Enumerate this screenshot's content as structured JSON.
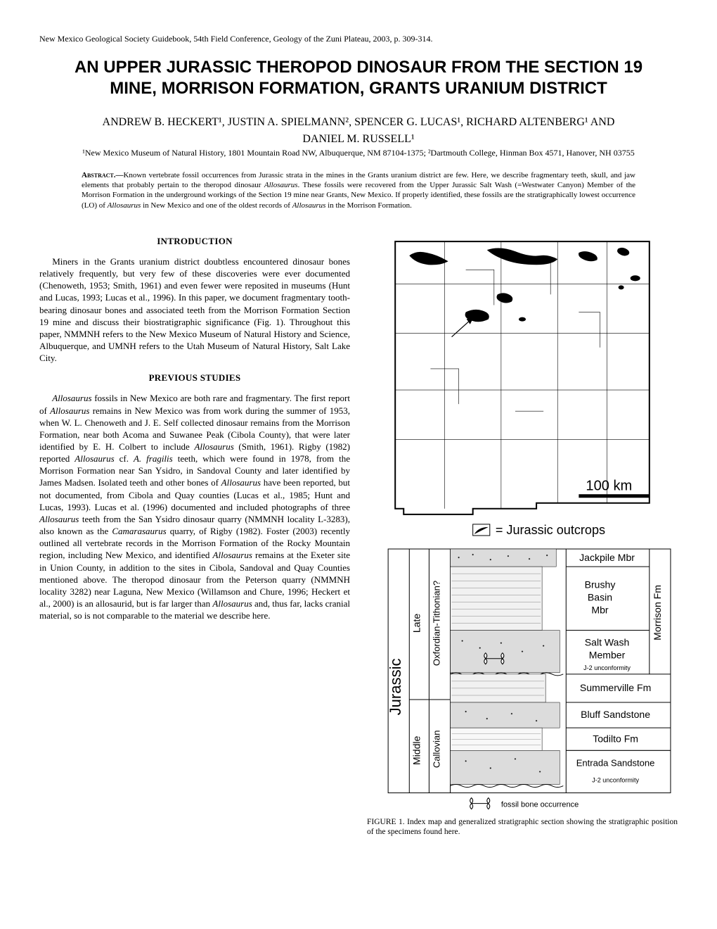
{
  "header_note": "New Mexico Geological Society Guidebook, 54th Field Conference, Geology of the Zuni Plateau, 2003, p. 309-314.",
  "title": "AN UPPER JURASSIC THEROPOD DINOSAUR FROM THE SECTION 19 MINE, MORRISON FORMATION, GRANTS URANIUM DISTRICT",
  "authors_line1": "ANDREW B. HECKERT¹, JUSTIN A. SPIELMANN², SPENCER G. LUCAS¹, RICHARD ALTENBERG¹ AND",
  "authors_line2": "DANIEL M. RUSSELL¹",
  "affiliations": "¹New Mexico Museum of Natural History, 1801 Mountain Road NW, Albuquerque, NM 87104-1375; ²Dartmouth College, Hinman Box 4571, Hanover, NH 03755",
  "abstract_label": "Abstract.—",
  "abstract_text": "Known vertebrate fossil occurrences from Jurassic strata in the mines in the Grants uranium district are few. Here, we describe fragmentary teeth, skull, and jaw elements that probably pertain to the theropod dinosaur Allosaurus. These fossils were recovered from the Upper Jurassic Salt Wash (=Westwater Canyon) Member of the Morrison Formation in the underground workings of the Section 19 mine near Grants, New Mexico. If properly identified, these fossils are the stratigraphically lowest occurrence (LO) of Allosaurus in New Mexico and one of the oldest records of Allosaurus in the Morrison Formation.",
  "sections": {
    "intro_heading": "INTRODUCTION",
    "intro_text": "Miners in the Grants uranium district doubtless encountered dinosaur bones relatively frequently, but very few of these discoveries were ever documented (Chenoweth, 1953; Smith, 1961) and even fewer were reposited in museums (Hunt and Lucas, 1993; Lucas et al., 1996). In this paper, we document fragmentary tooth-bearing dinosaur bones and associated teeth from the Morrison Formation Section 19 mine and discuss their biostratigraphic significance (Fig. 1). Throughout this paper, NMMNH refers to the New Mexico Museum of Natural History and Science, Albuquerque, and UMNH refers to the Utah Museum of Natural History, Salt Lake City.",
    "prev_heading": "PREVIOUS STUDIES",
    "prev_text": "Allosaurus fossils in New Mexico are both rare and fragmentary. The first report of Allosaurus remains in New Mexico was from work during the summer of 1953, when W. L. Chenoweth and J. E. Self collected dinosaur remains from the Morrison Formation, near both Acoma and Suwanee Peak (Cibola County), that were later identified by E. H. Colbert to include Allosaurus (Smith, 1961). Rigby (1982) reported Allosaurus cf. A. fragilis teeth, which were found in 1978, from the Morrison Formation near San Ysidro, in Sandoval County and later identified by James Madsen. Isolated teeth and other bones of Allosaurus have been reported, but not documented, from Cibola and Quay counties (Lucas et al., 1985; Hunt and Lucas, 1993). Lucas et al. (1996) documented and included photographs of  three Allosaurus teeth from the San Ysidro dinosaur quarry (NMMNH locality L-3283), also known as the Camarasaurus quarry, of Rigby (1982). Foster (2003) recently outlined all vertebrate records in the Morrison Formation of the Rocky Mountain region, including New Mexico, and identified Allosaurus remains at the Exeter site in Union County, in addition to the sites in Cibola, Sandoval and Quay Counties mentioned above. The theropod dinosaur from the Peterson quarry (NMMNH locality 3282) near Laguna, New Mexico (Willamson and Chure, 1996; Heckert et al., 2000) is an allosaurid, but is far larger than Allosaurus and, thus far, lacks cranial material, so is not comparable to the material we describe here."
  },
  "figure": {
    "caption": "FIGURE 1. Index map and generalized stratigraphic section showing the stratigraphic position of the specimens found here.",
    "map": {
      "scalebar_label": "100 km",
      "legend_label": "= Jurassic outcrops",
      "background": "#ffffff",
      "outcrop_fill": "#000000"
    },
    "strat": {
      "vertical_axis_main": "Jurassic",
      "period_labels": [
        "Late",
        "Middle"
      ],
      "age_labels": [
        "Oxfordian-Tithonian?",
        "Callovian"
      ],
      "formation_group": "Morrison Fm",
      "units": [
        {
          "label": "Jackpile Mbr"
        },
        {
          "label": "Brushy Basin Mbr"
        },
        {
          "label": "Salt Wash Member"
        },
        {
          "label_small": "J-2 unconformity"
        },
        {
          "label": "Summerville Fm"
        },
        {
          "label": "Bluff Sandstone"
        },
        {
          "label": "Todilto Fm"
        },
        {
          "label": "Entrada Sandstone"
        },
        {
          "label_small": "J-2 unconformity"
        }
      ],
      "fossil_label": "fossil bone occurrence",
      "colors": {
        "sandstone": "#d9d9d9",
        "mudstone": "#efefef",
        "border": "#000000",
        "background": "#ffffff"
      },
      "fontsize_main": 20,
      "fontsize_unit": 14,
      "fontsize_small": 9
    }
  }
}
